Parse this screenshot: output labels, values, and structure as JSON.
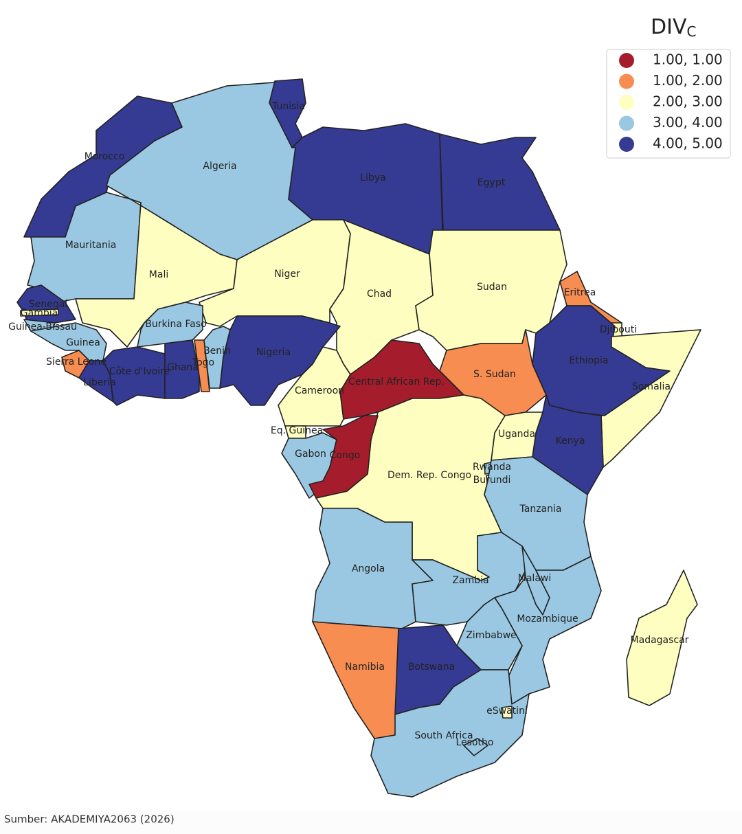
{
  "title": "DIV",
  "title_subscript": "C",
  "legend": [
    {
      "label": "1.00, 1.00",
      "color": "#a51d2d"
    },
    {
      "label": "1.00, 2.00",
      "color": "#f88d52"
    },
    {
      "label": "2.00, 3.00",
      "color": "#fefec0"
    },
    {
      "label": "3.00, 4.00",
      "color": "#9ac8e2"
    },
    {
      "label": "4.00, 5.00",
      "color": "#353a92"
    }
  ],
  "countries": [
    {
      "name": "Morocco",
      "bin": "4.00, 5.00"
    },
    {
      "name": "Algeria",
      "bin": "3.00, 4.00"
    },
    {
      "name": "Tunisia",
      "bin": "4.00, 5.00"
    },
    {
      "name": "Libya",
      "bin": "4.00, 5.00"
    },
    {
      "name": "Egypt",
      "bin": "4.00, 5.00"
    },
    {
      "name": "Mauritania",
      "bin": "3.00, 4.00"
    },
    {
      "name": "Mali",
      "bin": "2.00, 3.00"
    },
    {
      "name": "Niger",
      "bin": "2.00, 3.00"
    },
    {
      "name": "Chad",
      "bin": "2.00, 3.00"
    },
    {
      "name": "Sudan",
      "bin": "2.00, 3.00"
    },
    {
      "name": "S. Sudan",
      "bin": "1.00, 2.00"
    },
    {
      "name": "Eritrea",
      "bin": "1.00, 2.00"
    },
    {
      "name": "Djibouti",
      "bin": "2.00, 3.00"
    },
    {
      "name": "Ethiopia",
      "bin": "4.00, 5.00"
    },
    {
      "name": "Somalia",
      "bin": "2.00, 3.00"
    },
    {
      "name": "Kenya",
      "bin": "4.00, 5.00"
    },
    {
      "name": "Uganda",
      "bin": "2.00, 3.00"
    },
    {
      "name": "Senegal",
      "bin": "4.00, 5.00"
    },
    {
      "name": "Gambia",
      "bin": "2.00, 3.00"
    },
    {
      "name": "Guinea-Bissau",
      "bin": "3.00, 4.00"
    },
    {
      "name": "Guinea",
      "bin": "3.00, 4.00"
    },
    {
      "name": "Sierra Leone",
      "bin": "1.00, 2.00"
    },
    {
      "name": "Liberia",
      "bin": "4.00, 5.00"
    },
    {
      "name": "Côte d'Ivoire",
      "bin": "4.00, 5.00"
    },
    {
      "name": "Burkina Faso",
      "bin": "3.00, 4.00"
    },
    {
      "name": "Ghana",
      "bin": "4.00, 5.00"
    },
    {
      "name": "Togo",
      "bin": "1.00, 2.00"
    },
    {
      "name": "Benin",
      "bin": "3.00, 4.00"
    },
    {
      "name": "Nigeria",
      "bin": "4.00, 5.00"
    },
    {
      "name": "Cameroon",
      "bin": "2.00, 3.00"
    },
    {
      "name": "Central African Rep.",
      "bin": "1.00, 1.00"
    },
    {
      "name": "Eq. Guinea",
      "bin": "2.00, 3.00"
    },
    {
      "name": "Gabon",
      "bin": "3.00, 4.00"
    },
    {
      "name": "Dem. Rep. Congo",
      "bin": "2.00, 3.00"
    },
    {
      "name": "Congo",
      "bin": "1.00, 1.00"
    },
    {
      "name": "Rwanda",
      "bin": "3.00, 4.00"
    },
    {
      "name": "Burundi",
      "bin": "2.00, 3.00"
    },
    {
      "name": "Tanzania",
      "bin": "3.00, 4.00"
    },
    {
      "name": "Angola",
      "bin": "3.00, 4.00"
    },
    {
      "name": "Zambia",
      "bin": "3.00, 4.00"
    },
    {
      "name": "Malawi",
      "bin": "3.00, 4.00"
    },
    {
      "name": "Mozambique",
      "bin": "3.00, 4.00"
    },
    {
      "name": "Zimbabwe",
      "bin": "3.00, 4.00"
    },
    {
      "name": "Namibia",
      "bin": "1.00, 2.00"
    },
    {
      "name": "Botswana",
      "bin": "4.00, 5.00"
    },
    {
      "name": "South Africa",
      "bin": "3.00, 4.00"
    },
    {
      "name": "Lesotho",
      "bin": "3.00, 4.00"
    },
    {
      "name": "eSwatini",
      "bin": "2.00, 3.00"
    },
    {
      "name": "Madagascar",
      "bin": "2.00, 3.00"
    }
  ],
  "source": "Sumber: AKADEMIYA2063 (2026)"
}
